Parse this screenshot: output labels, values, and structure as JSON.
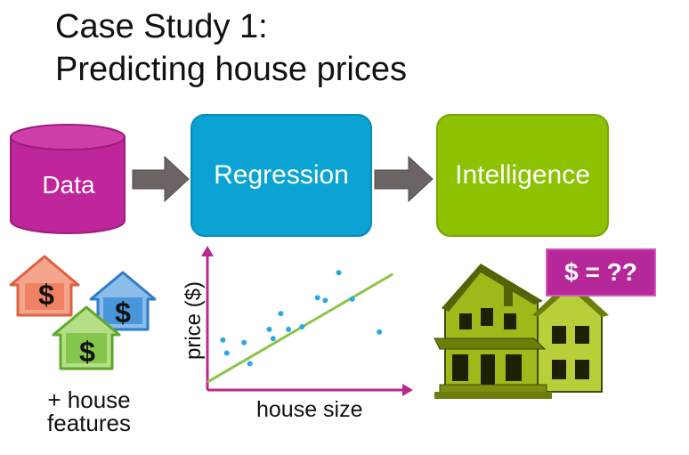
{
  "slide": {
    "title_line1": "Case Study 1:",
    "title_line2": "Predicting house prices"
  },
  "pipeline": {
    "data_label": "Data",
    "regression_label": "Regression",
    "intelligence_label": "Intelligence"
  },
  "houses_caption": "+ house features",
  "dollar_glyph": "$",
  "price_tag": "$ = ??",
  "chart_data": {
    "type": "scatter",
    "xlabel": "house size",
    "ylabel": "price ($)",
    "xlim": [
      0,
      10
    ],
    "ylim": [
      0,
      10
    ],
    "points": [
      [
        0.8,
        3.8
      ],
      [
        1.0,
        2.8
      ],
      [
        1.9,
        3.6
      ],
      [
        2.2,
        2.0
      ],
      [
        3.2,
        4.6
      ],
      [
        3.4,
        3.9
      ],
      [
        3.8,
        5.8
      ],
      [
        4.2,
        4.6
      ],
      [
        4.9,
        4.8
      ],
      [
        5.7,
        7.0
      ],
      [
        6.1,
        6.8
      ],
      [
        6.8,
        8.9
      ],
      [
        7.5,
        6.9
      ],
      [
        8.9,
        4.4
      ]
    ],
    "fit_line": {
      "x": [
        0,
        9.6
      ],
      "y": [
        0.6,
        8.8
      ]
    },
    "colors": {
      "axes": "#b8288f",
      "points": "#2ba9e0",
      "fit": "#8bc34a"
    }
  },
  "colors": {
    "data_cylinder": "#c0269b",
    "regression_box": "#0aa3d3",
    "intelligence_box": "#8cc200",
    "arrow": "#6b6462",
    "house_orange": "#ef7a5c",
    "house_blue": "#3d8fd8",
    "house_green": "#7cc243"
  }
}
